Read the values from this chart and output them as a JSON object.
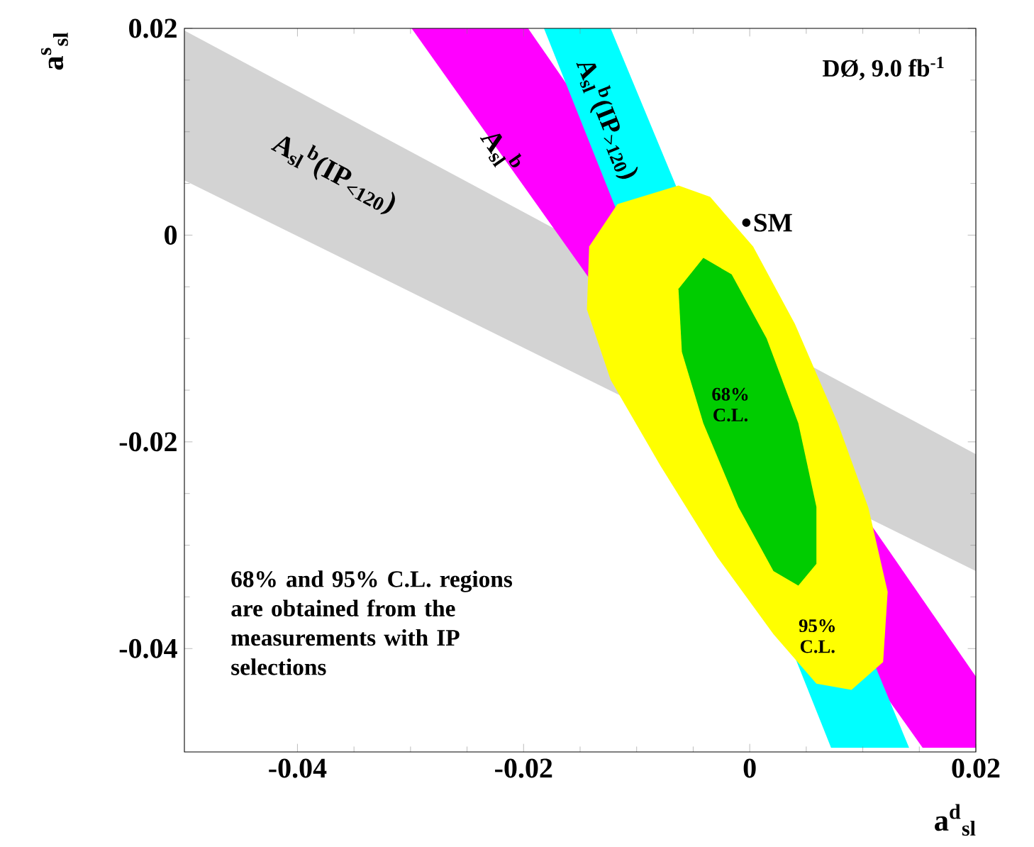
{
  "chart_data": {
    "type": "area",
    "title": "DØ, 9.0 fb$^{-1}$",
    "xlabel": "a$^{d}$$_{sl}$",
    "ylabel": "a$^{s}$$_{sl}$",
    "xlim": [
      -0.05,
      0.02
    ],
    "ylim": [
      -0.05,
      0.02
    ],
    "xticks": [
      -0.04,
      -0.02,
      0,
      0.02
    ],
    "yticks": [
      -0.04,
      -0.02,
      0,
      0.02
    ],
    "grid": false,
    "series": [
      {
        "name": "A$_{sl}$$^{b}$(IP$_{<120}$)",
        "color": "#d3d3d3",
        "x": [
          -0.05,
          0.02,
          0.02,
          -0.05
        ],
        "values": [
          0.0198,
          -0.0212,
          -0.0325,
          0.0053
        ]
      },
      {
        "name": "A$_{sl}$$^{b}$",
        "color": "#ff00ff",
        "x": [
          -0.0299,
          -0.0196,
          0.02,
          0.02,
          0.0153
        ],
        "values": [
          0.02,
          0.02,
          -0.0427,
          -0.0496,
          -0.0496
        ]
      },
      {
        "name": "A$_{sl}$$^{b}$(IP$_{>120}$)",
        "color": "#00ffff",
        "x": [
          -0.0182,
          -0.0123,
          0.0141,
          0.0072
        ],
        "values": [
          0.02,
          0.02,
          -0.0496,
          -0.0496
        ]
      },
      {
        "name": "95% C.L.",
        "color": "#ffff00",
        "x": [
          -0.0063,
          -0.0035,
          0.0003,
          0.004,
          0.0078,
          0.0105,
          0.0122,
          0.0118,
          0.009,
          0.0059,
          0.0021,
          -0.0029,
          -0.0079,
          -0.0123,
          -0.0144,
          -0.0142,
          -0.0117
        ],
        "values": [
          0.0048,
          0.0037,
          -0.0011,
          -0.0086,
          -0.0182,
          -0.0264,
          -0.0345,
          -0.0413,
          -0.044,
          -0.0434,
          -0.0386,
          -0.0311,
          -0.0223,
          -0.014,
          -0.0072,
          -0.0011,
          0.003
        ]
      },
      {
        "name": "68% C.L.",
        "color": "#00cc00",
        "x": [
          -0.0041,
          -0.0016,
          0.0015,
          0.0043,
          0.0059,
          0.0059,
          0.0043,
          0.0021,
          -0.001,
          -0.0041,
          -0.006,
          -0.0063
        ],
        "values": [
          -0.0022,
          -0.0038,
          -0.01,
          -0.0182,
          -0.0263,
          -0.0318,
          -0.0339,
          -0.0325,
          -0.0263,
          -0.0182,
          -0.0113,
          -0.0052
        ]
      },
      {
        "type": "scatter",
        "name": "SM",
        "color": "#000000",
        "marker": "circle",
        "x": [
          -0.0003
        ],
        "values": [
          0.0012
        ]
      }
    ],
    "annotations": [
      "68% and 95% C.L. regions are obtained from the measurements with IP selections"
    ]
  }
}
